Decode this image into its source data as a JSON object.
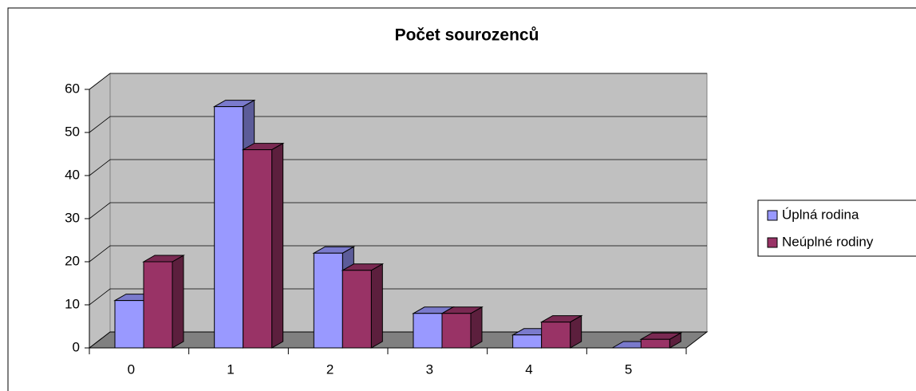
{
  "chart_data": {
    "type": "bar3d",
    "title": "Počet sourozenců",
    "categories": [
      "0",
      "1",
      "2",
      "3",
      "4",
      "5"
    ],
    "series": [
      {
        "name": "Úplná rodina",
        "color": "#9999ff",
        "values": [
          11,
          56,
          22,
          8,
          3,
          0
        ]
      },
      {
        "name": "Neúplné rodiny",
        "color": "#993366",
        "values": [
          20,
          46,
          18,
          8,
          6,
          2
        ]
      }
    ],
    "ylim": [
      0,
      60
    ],
    "yticks": [
      0,
      10,
      20,
      30,
      40,
      50,
      60
    ],
    "grid": true,
    "legend": "right"
  }
}
